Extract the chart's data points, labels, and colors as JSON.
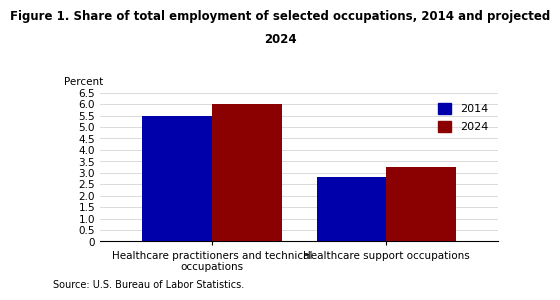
{
  "title_line1": "Figure 1. Share of total employment of selected occupations, 2014 and projected",
  "title_line2": "2024",
  "ylabel_text": "Percent",
  "source": "Source: U.S. Bureau of Labor Statistics.",
  "categories": [
    "Healthcare practitioners and technical\noccupations",
    "Healthcare support occupations"
  ],
  "values_2014": [
    5.5,
    2.8
  ],
  "values_2024": [
    6.0,
    3.25
  ],
  "color_2014": "#0000AA",
  "color_2024": "#8B0000",
  "ylim": [
    0,
    6.5
  ],
  "yticks": [
    0,
    0.5,
    1.0,
    1.5,
    2.0,
    2.5,
    3.0,
    3.5,
    4.0,
    4.5,
    5.0,
    5.5,
    6.0,
    6.5
  ],
  "ytick_labels": [
    "0",
    "0.5",
    "1.0",
    "1.5",
    "2.0",
    "2.5",
    "3.0",
    "3.5",
    "4.0",
    "4.5",
    "5.0",
    "5.5",
    "6.0",
    "6.5"
  ],
  "bar_width": 0.28,
  "group_positions": [
    0.35,
    1.05
  ],
  "legend_labels": [
    "2014",
    "2024"
  ],
  "background_color": "#ffffff",
  "title_fontsize": 8.5,
  "axis_fontsize": 7.5,
  "tick_fontsize": 7.5,
  "source_fontsize": 7,
  "legend_fontsize": 8
}
